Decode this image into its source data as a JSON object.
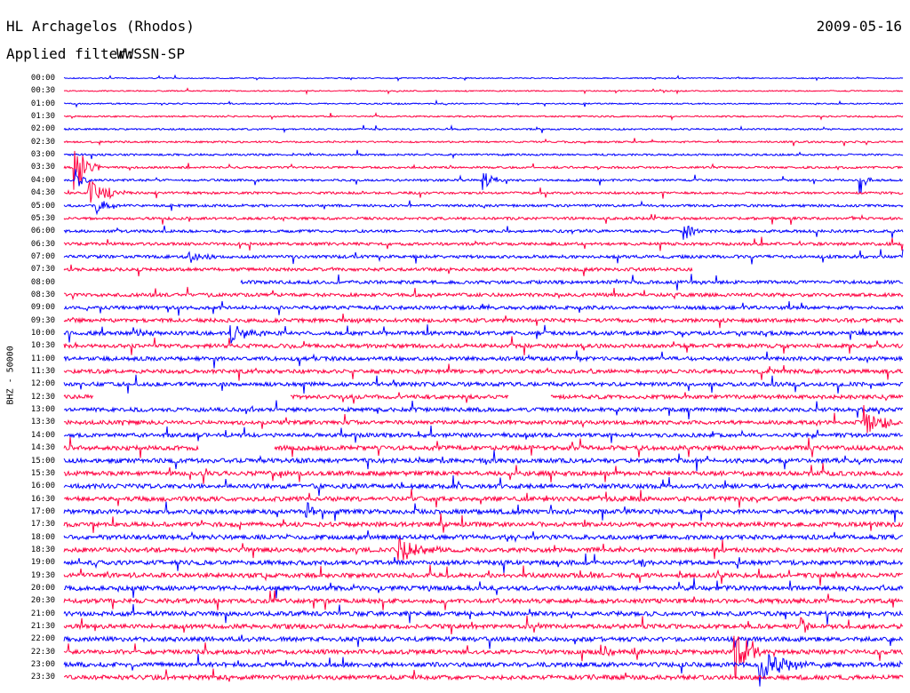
{
  "header": {
    "station": "HL Archagelos (Rhodos)",
    "date": "2009-05-16",
    "filter_label": "Applied filter:",
    "filter_value": "WWSSN-SP",
    "channel_label": "BHZ - 50000"
  },
  "colors": {
    "trace_a": "#0000ff",
    "trace_b": "#ff0040"
  },
  "chart_data": {
    "type": "seismogram-helicorder",
    "row_interval_minutes": 30,
    "row_labels": [
      "00:00",
      "00:30",
      "01:00",
      "01:30",
      "02:00",
      "02:30",
      "03:00",
      "03:30",
      "04:00",
      "04:30",
      "05:00",
      "05:30",
      "06:00",
      "06:30",
      "07:00",
      "07:30",
      "08:00",
      "08:30",
      "09:00",
      "09:30",
      "10:00",
      "10:30",
      "11:00",
      "11:30",
      "12:00",
      "12:30",
      "13:00",
      "13:30",
      "14:00",
      "14:30",
      "15:00",
      "15:30",
      "16:00",
      "16:30",
      "17:00",
      "17:30",
      "18:00",
      "18:30",
      "19:00",
      "19:30",
      "20:00",
      "20:30",
      "21:00",
      "21:30",
      "22:00",
      "22:30",
      "23:00",
      "23:30"
    ],
    "gaps": [
      {
        "row": "07:30",
        "from": 0.75,
        "to": 1.0
      },
      {
        "row": "08:00",
        "from": 0.0,
        "to": 0.21
      },
      {
        "row": "12:30",
        "from": 0.035,
        "to": 0.27
      },
      {
        "row": "12:30",
        "from": 0.53,
        "to": 0.58
      },
      {
        "row": "14:30",
        "from": 0.16,
        "to": 0.25
      }
    ],
    "events": [
      {
        "row": "03:30",
        "pos": 0.013,
        "amp": 34,
        "dur": 0.03
      },
      {
        "row": "04:00",
        "pos": 0.015,
        "amp": 12,
        "dur": 0.02
      },
      {
        "row": "04:30",
        "pos": 0.03,
        "amp": 16,
        "dur": 0.06
      },
      {
        "row": "05:00",
        "pos": 0.04,
        "amp": 10,
        "dur": 0.03
      },
      {
        "row": "04:00",
        "pos": 0.5,
        "amp": 10,
        "dur": 0.03
      },
      {
        "row": "04:00",
        "pos": 0.95,
        "amp": 18,
        "dur": 0.015
      },
      {
        "row": "06:00",
        "pos": 0.74,
        "amp": 14,
        "dur": 0.02
      },
      {
        "row": "07:00",
        "pos": 0.15,
        "amp": 8,
        "dur": 0.04
      },
      {
        "row": "10:00",
        "pos": 0.082,
        "amp": 8,
        "dur": 0.03
      },
      {
        "row": "10:00",
        "pos": 0.2,
        "amp": 12,
        "dur": 0.04
      },
      {
        "row": "13:30",
        "pos": 0.955,
        "amp": 24,
        "dur": 0.05
      },
      {
        "row": "17:00",
        "pos": 0.29,
        "amp": 12,
        "dur": 0.02
      },
      {
        "row": "18:30",
        "pos": 0.4,
        "amp": 16,
        "dur": 0.05
      },
      {
        "row": "19:00",
        "pos": 0.69,
        "amp": 6,
        "dur": 0.01
      },
      {
        "row": "21:30",
        "pos": 0.88,
        "amp": 8,
        "dur": 0.02
      },
      {
        "row": "22:30",
        "pos": 0.8,
        "amp": 38,
        "dur": 0.03
      },
      {
        "row": "22:30",
        "pos": 0.64,
        "amp": 10,
        "dur": 0.02
      },
      {
        "row": "23:00",
        "pos": 0.83,
        "amp": 24,
        "dur": 0.08
      }
    ]
  }
}
